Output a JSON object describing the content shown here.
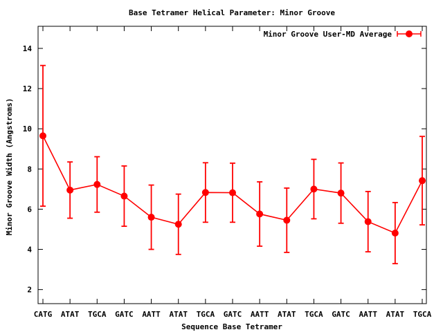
{
  "chart_data": {
    "type": "line",
    "title": "Base Tetramer Helical Parameter: Minor Groove",
    "xlabel": "Sequence Base Tetramer",
    "ylabel": "Minor Groove Width (Angstroms)",
    "categories": [
      "CATG",
      "ATAT",
      "TGCA",
      "GATC",
      "AATT",
      "ATAT",
      "TGCA",
      "GATC",
      "AATT",
      "ATAT",
      "TGCA",
      "GATC",
      "AATT",
      "ATAT",
      "TGCA"
    ],
    "ylim": [
      1.3,
      15.1
    ],
    "yticks": [
      "2",
      "4",
      "6",
      "8",
      "10",
      "12",
      "14"
    ],
    "yticks_values": [
      2,
      4,
      6,
      8,
      10,
      12,
      14
    ],
    "legend_position": "top-right",
    "grid": false,
    "series": [
      {
        "name": "Minor Groove User-MD Average",
        "color": "#ff0000",
        "values": [
          9.65,
          6.95,
          7.23,
          6.65,
          5.6,
          5.25,
          6.83,
          6.82,
          5.76,
          5.45,
          7.0,
          6.8,
          5.38,
          4.81,
          7.42
        ],
        "error": [
          3.5,
          1.4,
          1.38,
          1.5,
          1.6,
          1.5,
          1.48,
          1.47,
          1.6,
          1.6,
          1.48,
          1.5,
          1.5,
          1.52,
          2.2
        ]
      }
    ]
  }
}
